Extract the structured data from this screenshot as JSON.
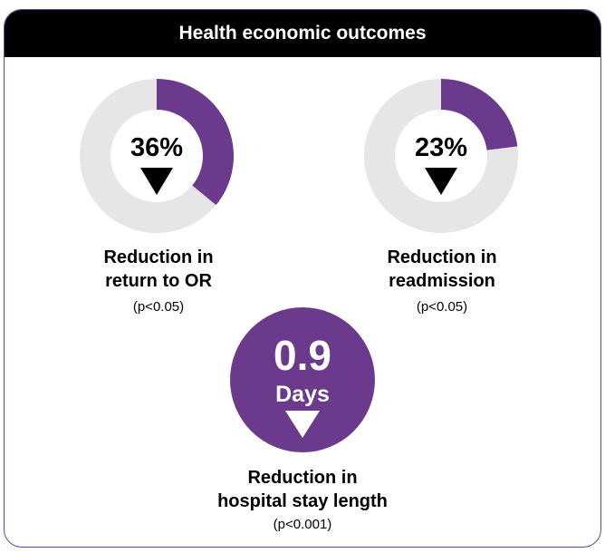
{
  "header": {
    "title": "Health economic outcomes"
  },
  "colors": {
    "accent": "#6b3a8c",
    "track": "#e6e6e6",
    "header_bg": "#000000"
  },
  "chart_data": [
    {
      "type": "pie",
      "value": 36,
      "value_label": "36%",
      "direction": "down",
      "label_lines": [
        "Reduction in",
        "return to OR"
      ],
      "pvalue": "(p<0.05)"
    },
    {
      "type": "pie",
      "value": 23,
      "value_label": "23%",
      "direction": "down",
      "label_lines": [
        "Reduction in",
        "readmission"
      ],
      "pvalue": "(p<0.05)"
    }
  ],
  "stay": {
    "value": "0.9",
    "unit": "Days",
    "direction": "down",
    "label_lines": [
      "Reduction in",
      "hospital stay length"
    ],
    "pvalue": "(p<0.001)"
  }
}
